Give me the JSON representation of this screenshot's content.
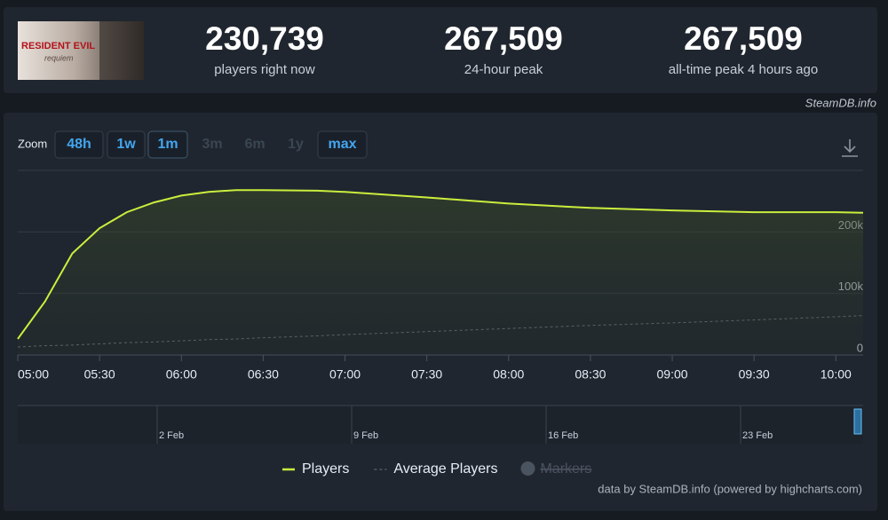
{
  "header": {
    "image_title": "RESIDENT EVIL",
    "image_subtitle": "requiem",
    "stats": [
      {
        "value": "230,739",
        "label": "players right now"
      },
      {
        "value": "267,509",
        "label": "24-hour peak"
      },
      {
        "value": "267,509",
        "label": "all-time peak 4 hours ago"
      }
    ],
    "source": "SteamDB.info"
  },
  "zoom": {
    "label": "Zoom",
    "buttons": [
      {
        "text": "48h",
        "state": "enabled"
      },
      {
        "text": "1w",
        "state": "enabled"
      },
      {
        "text": "1m",
        "state": "active"
      },
      {
        "text": "3m",
        "state": "disabled"
      },
      {
        "text": "6m",
        "state": "disabled"
      },
      {
        "text": "1y",
        "state": "disabled"
      },
      {
        "text": "max",
        "state": "enabled"
      }
    ]
  },
  "chart_data": {
    "type": "line",
    "x": [
      "05:00",
      "05:10",
      "05:20",
      "05:30",
      "05:40",
      "05:50",
      "06:00",
      "06:10",
      "06:20",
      "06:30",
      "06:50",
      "07:00",
      "07:30",
      "08:00",
      "08:30",
      "09:00",
      "09:30",
      "10:00",
      "10:10"
    ],
    "series": [
      {
        "name": "Players",
        "color": "#cbee3d",
        "dashed": false,
        "values": [
          26000,
          87000,
          165000,
          206000,
          232000,
          248000,
          259000,
          265000,
          268000,
          268000,
          267000,
          265000,
          256000,
          246000,
          239000,
          235000,
          232000,
          232000,
          231000
        ]
      },
      {
        "name": "Average Players",
        "color": "#6b7580",
        "dashed": true,
        "values": [
          13000,
          15000,
          16000,
          18000,
          20000,
          21000,
          23000,
          25000,
          26000,
          28000,
          31000,
          33000,
          38000,
          43000,
          48000,
          52000,
          57000,
          62000,
          64000
        ]
      }
    ],
    "markers": {
      "name": "Markers"
    },
    "xlim": [
      "05:00",
      "10:10"
    ],
    "xticks": [
      "05:00",
      "05:30",
      "06:00",
      "06:30",
      "07:00",
      "07:30",
      "08:00",
      "08:30",
      "09:00",
      "09:30",
      "10:00"
    ],
    "ylim": [
      0,
      300000
    ],
    "yticks": [
      0,
      {
        "value": 100000,
        "label": "100k"
      },
      {
        "value": 200000,
        "label": "200k"
      }
    ],
    "grid": true,
    "navigator_labels": [
      "2 Feb",
      "9 Feb",
      "16 Feb",
      "23 Feb"
    ],
    "credits": "data by SteamDB.info (powered by highcharts.com)"
  }
}
